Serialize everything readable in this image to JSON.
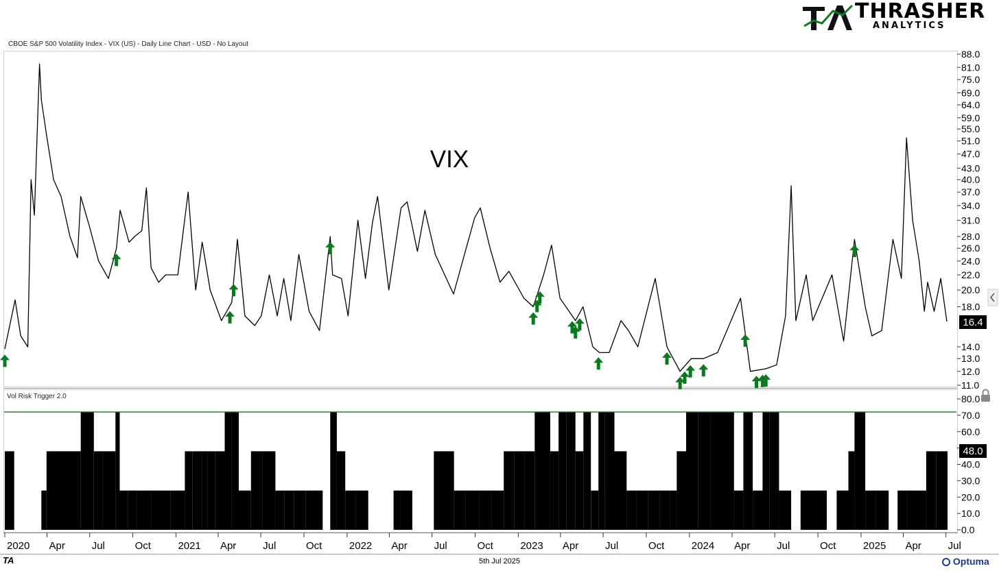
{
  "header": {
    "instrument": "CBOE S&P 500 Volatility Index - VIX (US) - Daily Line Chart - USD - No Layout",
    "logo_text": "THRASHER",
    "logo_sub": "ANALYTICS",
    "logo_mark": "TA"
  },
  "footer": {
    "date": "5th Jul 2025",
    "brand": "Optuma",
    "mark": "TA"
  },
  "colors": {
    "line": "#000000",
    "arrow": "#0a7a1e",
    "trigger_line": "#0a7a1e",
    "badge_bg": "#000000",
    "badge_text": "#ffffff"
  },
  "chart_data": [
    {
      "type": "line",
      "title": "VIX",
      "y_scale": "log",
      "ylim": [
        11,
        88
      ],
      "y_ticks": [
        "88.0",
        "81.0",
        "75.0",
        "69.0",
        "64.0",
        "59.0",
        "55.0",
        "51.0",
        "47.0",
        "43.0",
        "40.0",
        "37.0",
        "34.0",
        "31.0",
        "28.0",
        "26.0",
        "24.0",
        "22.0",
        "20.0",
        "18.0",
        "14.0",
        "13.0",
        "12.0",
        "11.0"
      ],
      "last_value_label": "16.4",
      "last_value": 16.4,
      "x_ticks": [
        "2020",
        "Apr",
        "Jul",
        "Oct",
        "2021",
        "Apr",
        "Jul",
        "Oct",
        "2022",
        "Apr",
        "Jul",
        "Oct",
        "2023",
        "Apr",
        "Jul",
        "Oct",
        "2024",
        "Apr",
        "Jul",
        "Oct",
        "2025",
        "Apr",
        "Jul"
      ],
      "x": [
        "2020-01-02",
        "2020-01-24",
        "2020-02-05",
        "2020-02-20",
        "2020-02-27",
        "2020-03-05",
        "2020-03-16",
        "2020-03-20",
        "2020-03-31",
        "2020-04-15",
        "2020-05-01",
        "2020-05-20",
        "2020-06-05",
        "2020-06-12",
        "2020-06-30",
        "2020-07-20",
        "2020-08-10",
        "2020-08-27",
        "2020-09-04",
        "2020-09-23",
        "2020-10-05",
        "2020-10-20",
        "2020-10-30",
        "2020-11-09",
        "2020-11-25",
        "2020-12-10",
        "2021-01-05",
        "2021-01-27",
        "2021-02-12",
        "2021-02-26",
        "2021-03-15",
        "2021-04-08",
        "2021-04-30",
        "2021-05-12",
        "2021-05-28",
        "2021-06-18",
        "2021-07-02",
        "2021-07-19",
        "2021-08-05",
        "2021-08-19",
        "2021-09-03",
        "2021-09-20",
        "2021-10-12",
        "2021-11-03",
        "2021-11-26",
        "2021-12-01",
        "2021-12-20",
        "2022-01-03",
        "2022-01-24",
        "2022-02-09",
        "2022-02-24",
        "2022-03-07",
        "2022-03-31",
        "2022-04-26",
        "2022-05-09",
        "2022-05-31",
        "2022-06-16",
        "2022-07-08",
        "2022-08-16",
        "2022-09-30",
        "2022-10-12",
        "2022-11-02",
        "2022-11-23",
        "2022-12-12",
        "2023-01-13",
        "2023-02-02",
        "2023-02-24",
        "2023-03-13",
        "2023-03-31",
        "2023-05-03",
        "2023-05-19",
        "2023-06-09",
        "2023-06-23",
        "2023-07-14",
        "2023-08-08",
        "2023-08-24",
        "2023-09-13",
        "2023-10-20",
        "2023-11-14",
        "2023-12-12",
        "2024-01-05",
        "2024-01-31",
        "2024-03-01",
        "2024-04-19",
        "2024-05-10",
        "2024-06-12",
        "2024-07-05",
        "2024-07-24",
        "2024-08-05",
        "2024-08-15",
        "2024-09-06",
        "2024-09-20",
        "2024-10-31",
        "2024-11-25",
        "2024-12-18",
        "2025-01-10",
        "2025-01-24",
        "2025-02-14",
        "2025-03-10",
        "2025-03-28",
        "2025-04-08",
        "2025-04-21",
        "2025-05-05",
        "2025-05-16",
        "2025-05-23",
        "2025-06-06",
        "2025-06-20",
        "2025-07-03"
      ],
      "y": [
        13.8,
        18.8,
        15.0,
        14.0,
        40.0,
        32.0,
        82.7,
        66.0,
        53.0,
        40.0,
        36.0,
        28.0,
        24.5,
        36.0,
        30.0,
        24.0,
        21.5,
        26.0,
        33.0,
        27.0,
        28.0,
        29.0,
        38.0,
        23.0,
        21.0,
        22.0,
        22.0,
        37.0,
        20.0,
        27.0,
        20.0,
        16.5,
        18.5,
        27.5,
        17.0,
        16.0,
        17.0,
        22.0,
        17.0,
        21.5,
        16.5,
        25.0,
        17.5,
        15.5,
        28.0,
        22.0,
        21.5,
        17.0,
        31.0,
        21.5,
        30.5,
        36.0,
        20.0,
        33.5,
        34.8,
        25.5,
        33.0,
        25.0,
        19.5,
        31.5,
        33.5,
        26.0,
        21.0,
        22.5,
        19.0,
        18.0,
        22.0,
        26.5,
        19.0,
        16.5,
        18.0,
        14.0,
        13.5,
        13.5,
        16.5,
        15.5,
        14.0,
        21.5,
        14.0,
        12.0,
        13.0,
        13.0,
        13.5,
        19.0,
        12.0,
        12.2,
        12.5,
        17.0,
        38.5,
        16.5,
        22.0,
        16.5,
        22.0,
        14.5,
        27.5,
        18.0,
        15.0,
        15.5,
        27.5,
        21.5,
        52.0,
        31.0,
        24.0,
        17.5,
        21.0,
        17.5,
        21.5,
        16.4
      ],
      "signals": [
        "2020-01-02",
        "2020-08-27",
        "2021-04-26",
        "2021-05-04",
        "2021-11-26",
        "2023-02-02",
        "2023-02-10",
        "2023-02-16",
        "2023-04-26",
        "2023-05-03",
        "2023-05-12",
        "2023-06-21",
        "2023-11-14",
        "2023-12-12",
        "2023-12-22",
        "2024-01-03",
        "2024-01-31",
        "2024-04-29",
        "2024-05-23",
        "2024-06-05",
        "2024-06-12",
        "2024-12-18"
      ]
    },
    {
      "type": "bar",
      "title": "Vol Risk Trigger 2.0",
      "ylim": [
        0,
        80
      ],
      "y_ticks": [
        "80.0",
        "70.0",
        "60.0",
        "50.0",
        "40.0",
        "30.0",
        "20.0",
        "10.0",
        "0.0"
      ],
      "threshold": 72,
      "last_value_label": "48.0",
      "last_value": 48,
      "x": [
        "2020-01-02",
        "2020-01-22",
        "2020-02-24",
        "2020-03-20",
        "2020-03-31",
        "2020-05-20",
        "2020-06-12",
        "2020-07-10",
        "2020-07-29",
        "2020-08-25",
        "2020-09-03",
        "2020-09-20",
        "2020-10-10",
        "2020-11-10",
        "2020-12-20",
        "2021-01-20",
        "2021-02-05",
        "2021-02-26",
        "2021-03-10",
        "2021-03-25",
        "2021-04-15",
        "2021-04-29",
        "2021-05-15",
        "2021-06-10",
        "2021-07-05",
        "2021-08-01",
        "2021-08-20",
        "2021-09-10",
        "2021-10-05",
        "2021-10-25",
        "2021-11-10",
        "2021-11-26",
        "2021-12-10",
        "2021-12-28",
        "2022-01-20",
        "2022-02-15",
        "2022-03-15",
        "2022-04-10",
        "2022-04-25",
        "2022-05-20",
        "2022-06-15",
        "2022-07-05",
        "2022-07-25",
        "2022-08-17",
        "2022-09-10",
        "2022-10-10",
        "2022-11-05",
        "2022-12-01",
        "2022-12-23",
        "2023-01-15",
        "2023-02-05",
        "2023-03-10",
        "2023-03-28",
        "2023-04-14",
        "2023-05-03",
        "2023-05-20",
        "2023-06-05",
        "2023-06-21",
        "2023-07-05",
        "2023-07-25",
        "2023-08-20",
        "2023-09-10",
        "2023-10-05",
        "2023-10-30",
        "2023-11-20",
        "2023-12-05",
        "2023-12-25",
        "2024-01-20",
        "2024-02-15",
        "2024-03-10",
        "2024-04-05",
        "2024-04-25",
        "2024-05-15",
        "2024-06-05",
        "2024-06-20",
        "2024-07-10",
        "2024-08-05",
        "2024-08-25",
        "2024-09-20",
        "2024-10-20",
        "2024-11-10",
        "2024-12-05",
        "2024-12-18",
        "2025-01-10",
        "2025-02-01",
        "2025-03-01",
        "2025-03-20",
        "2025-04-10",
        "2025-05-01",
        "2025-05-20",
        "2025-06-10",
        "2025-07-03"
      ],
      "values": [
        48,
        0,
        0,
        24,
        48,
        48,
        72,
        48,
        48,
        72,
        24,
        24,
        24,
        24,
        24,
        48,
        48,
        48,
        48,
        48,
        72,
        72,
        24,
        48,
        48,
        24,
        24,
        24,
        24,
        24,
        0,
        72,
        48,
        24,
        24,
        0,
        0,
        24,
        24,
        0,
        0,
        48,
        48,
        24,
        24,
        24,
        24,
        48,
        48,
        48,
        72,
        48,
        72,
        72,
        48,
        72,
        24,
        72,
        72,
        48,
        24,
        24,
        24,
        24,
        24,
        48,
        72,
        72,
        72,
        72,
        24,
        72,
        24,
        72,
        72,
        24,
        0,
        24,
        24,
        0,
        24,
        48,
        72,
        24,
        24,
        0,
        24,
        24,
        24,
        48,
        48,
        48
      ]
    }
  ]
}
